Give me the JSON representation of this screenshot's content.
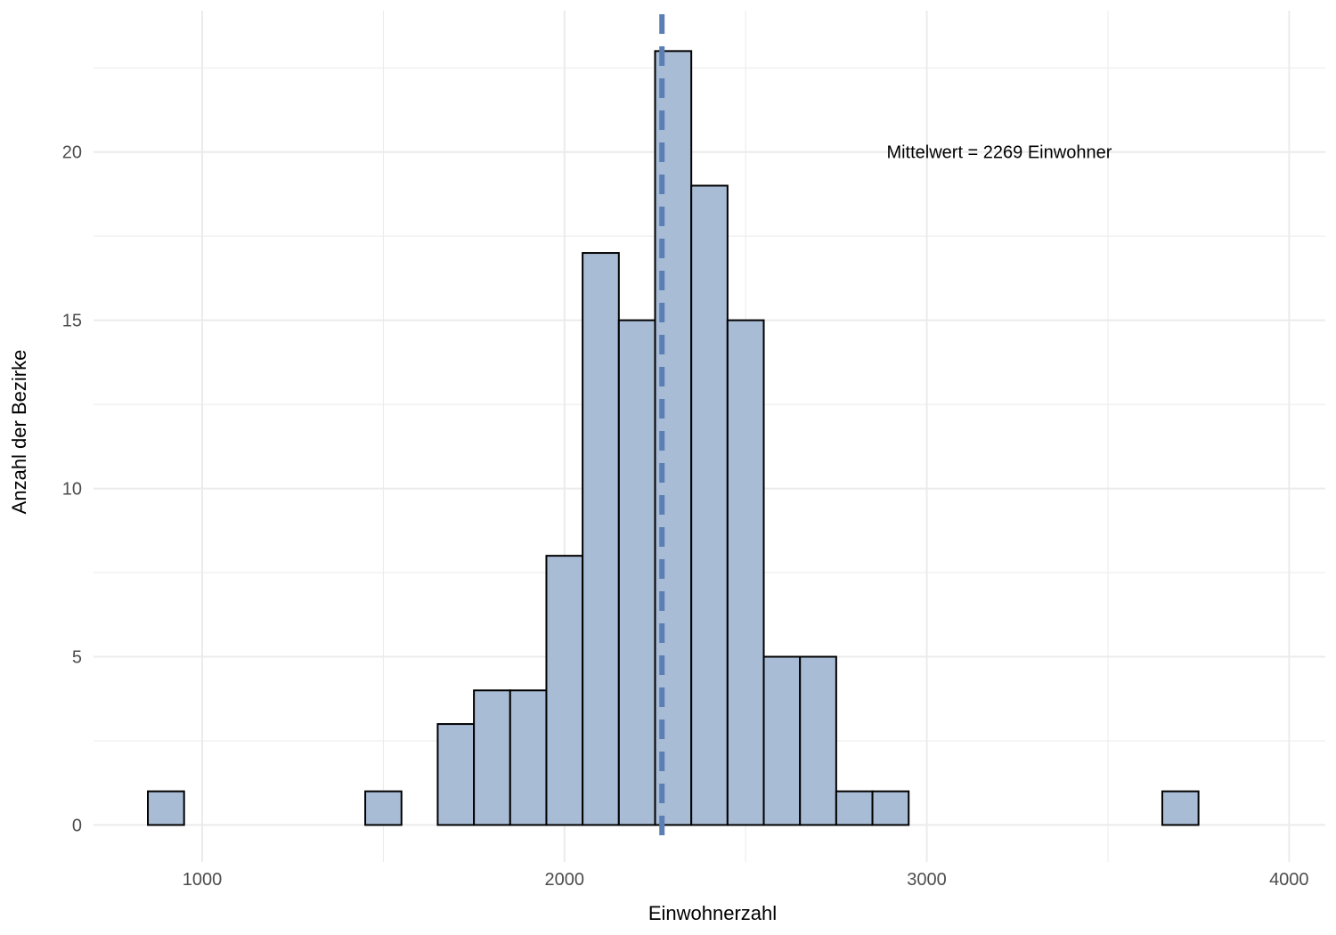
{
  "chart_data": {
    "type": "bar",
    "subtype": "histogram",
    "title": "",
    "xlabel": "Einwohnerzahl",
    "ylabel": "Anzahl der Bezirke",
    "xlim": [
      700,
      4100
    ],
    "ylim": [
      -1.1,
      24.2
    ],
    "x_ticks": [
      1000,
      2000,
      3000,
      4000
    ],
    "y_ticks": [
      0,
      5,
      10,
      15,
      20
    ],
    "grid": true,
    "bin_width": 100,
    "bins": [
      {
        "start": 850,
        "end": 950,
        "count": 1
      },
      {
        "start": 950,
        "end": 1050,
        "count": 0
      },
      {
        "start": 1050,
        "end": 1150,
        "count": 0
      },
      {
        "start": 1150,
        "end": 1250,
        "count": 0
      },
      {
        "start": 1250,
        "end": 1350,
        "count": 0
      },
      {
        "start": 1350,
        "end": 1450,
        "count": 0
      },
      {
        "start": 1450,
        "end": 1550,
        "count": 1
      },
      {
        "start": 1550,
        "end": 1650,
        "count": 0
      },
      {
        "start": 1650,
        "end": 1750,
        "count": 3
      },
      {
        "start": 1750,
        "end": 1850,
        "count": 4
      },
      {
        "start": 1850,
        "end": 1950,
        "count": 4
      },
      {
        "start": 1950,
        "end": 2050,
        "count": 8
      },
      {
        "start": 2050,
        "end": 2150,
        "count": 17
      },
      {
        "start": 2150,
        "end": 2250,
        "count": 15
      },
      {
        "start": 2250,
        "end": 2350,
        "count": 23
      },
      {
        "start": 2350,
        "end": 2450,
        "count": 19
      },
      {
        "start": 2450,
        "end": 2550,
        "count": 15
      },
      {
        "start": 2550,
        "end": 2650,
        "count": 5
      },
      {
        "start": 2650,
        "end": 2750,
        "count": 5
      },
      {
        "start": 2750,
        "end": 2850,
        "count": 1
      },
      {
        "start": 2850,
        "end": 2950,
        "count": 1
      },
      {
        "start": 2950,
        "end": 3050,
        "count": 0
      },
      {
        "start": 3050,
        "end": 3150,
        "count": 0
      },
      {
        "start": 3150,
        "end": 3250,
        "count": 0
      },
      {
        "start": 3250,
        "end": 3350,
        "count": 0
      },
      {
        "start": 3350,
        "end": 3450,
        "count": 0
      },
      {
        "start": 3450,
        "end": 3550,
        "count": 0
      },
      {
        "start": 3550,
        "end": 3650,
        "count": 0
      },
      {
        "start": 3650,
        "end": 3750,
        "count": 1
      },
      {
        "start": 3750,
        "end": 3850,
        "count": 0
      },
      {
        "start": 3850,
        "end": 3950,
        "count": 0
      }
    ],
    "mean_line": {
      "x": 2269,
      "style": "dashed"
    },
    "annotation": {
      "text": "Mittelwert = 2269 Einwohner",
      "x": 3200,
      "y": 20
    },
    "colors": {
      "bar_fill": "#a9bcd6",
      "bar_stroke": "#000000",
      "mean_line": "#5b7fb4",
      "grid": "#ebebeb"
    }
  }
}
